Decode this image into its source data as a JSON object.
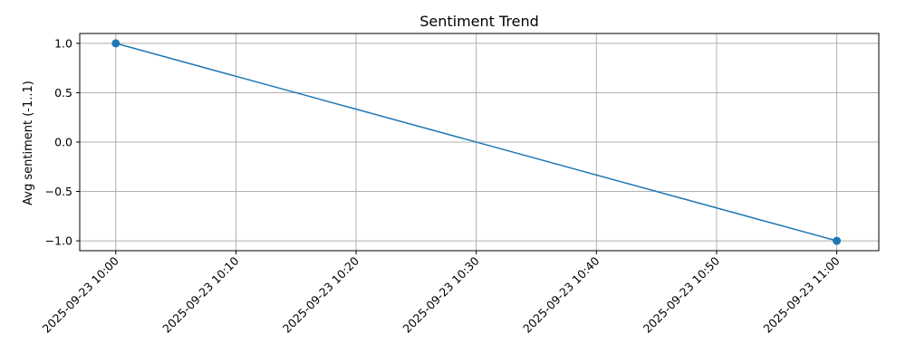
{
  "chart_data": {
    "type": "line",
    "title": "Sentiment Trend",
    "xlabel": "",
    "ylabel": "Avg sentiment (-1..1)",
    "x_tick_labels": [
      "2025-09-23 10:00",
      "2025-09-23 10:10",
      "2025-09-23 10:20",
      "2025-09-23 10:30",
      "2025-09-23 10:40",
      "2025-09-23 10:50",
      "2025-09-23 11:00"
    ],
    "x_tick_minutes": [
      0,
      10,
      20,
      30,
      40,
      50,
      60
    ],
    "y_ticks": [
      1.0,
      0.5,
      0.0,
      -0.5,
      -1.0
    ],
    "y_tick_labels": [
      "1.0",
      "0.5",
      "0.0",
      "−0.5",
      "−1.0"
    ],
    "xlim_minutes": [
      -3,
      63.5
    ],
    "ylim": [
      -1.1,
      1.1
    ],
    "grid": true,
    "series": [
      {
        "color": "#1f77b4",
        "x": [
          "2025-09-23 10:00",
          "2025-09-23 11:00"
        ],
        "x_minutes": [
          0,
          60
        ],
        "y": [
          1.0,
          -1.0
        ],
        "marker": "circle"
      }
    ]
  }
}
